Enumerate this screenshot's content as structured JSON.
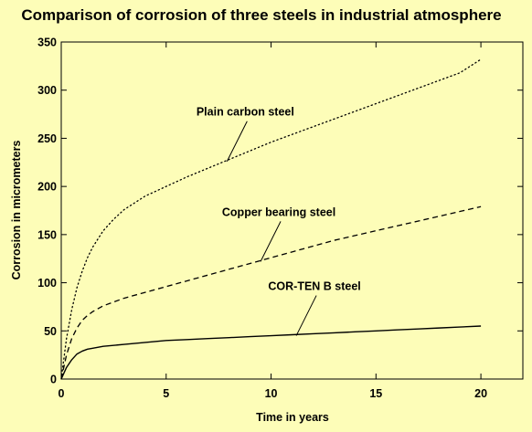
{
  "chart_data": {
    "type": "line",
    "title": "Comparison of corrosion of three steels in industrial atmosphere",
    "xlabel": "Time in years",
    "ylabel": "Corrosion in micrometers",
    "xlim": [
      0,
      22
    ],
    "ylim": [
      0,
      350
    ],
    "xticks": [
      0,
      5,
      10,
      15,
      20
    ],
    "yticks": [
      0,
      50,
      100,
      150,
      200,
      250,
      300,
      350
    ],
    "grid": false,
    "legend": "none",
    "background": "#fdfdb8",
    "series": [
      {
        "name": "Plain carbon steel",
        "style": "dotted",
        "x": [
          0,
          0.25,
          0.5,
          0.75,
          1,
          1.25,
          1.5,
          2,
          2.5,
          3,
          4,
          5,
          6,
          7,
          8,
          9,
          10,
          11,
          12,
          13,
          14,
          15,
          16,
          17,
          18,
          19,
          20
        ],
        "y": [
          0,
          42,
          72,
          95,
          112,
          126,
          137,
          154,
          166,
          176,
          190,
          200,
          210,
          219,
          228,
          237,
          246,
          254,
          262,
          270,
          278,
          286,
          294,
          302,
          310,
          318,
          332
        ]
      },
      {
        "name": "Copper bearing steel",
        "style": "dashed",
        "x": [
          0,
          0.25,
          0.5,
          0.75,
          1,
          1.25,
          1.5,
          2,
          2.5,
          3,
          4,
          5,
          6,
          7,
          8,
          9,
          10,
          11,
          12,
          13,
          14,
          15,
          16,
          17,
          18,
          19,
          20
        ],
        "y": [
          0,
          25,
          42,
          53,
          61,
          66,
          70,
          76,
          80,
          84,
          90,
          96,
          102,
          108,
          114,
          120,
          126,
          132,
          138,
          144,
          149,
          154,
          159,
          164,
          169,
          174,
          179
        ]
      },
      {
        "name": "COR-TEN B steel",
        "style": "solid",
        "x": [
          0,
          0.25,
          0.5,
          0.75,
          1,
          1.25,
          1.5,
          2,
          3,
          4,
          5,
          6,
          7,
          8,
          9,
          10,
          11,
          12,
          13,
          14,
          15,
          16,
          17,
          18,
          19,
          20
        ],
        "y": [
          0,
          12,
          20,
          26,
          29,
          31,
          32,
          34,
          36,
          38,
          40,
          41,
          42,
          43,
          44,
          45,
          46,
          47,
          48,
          49,
          50,
          51,
          52,
          53,
          54,
          55
        ]
      }
    ],
    "annotations": [
      {
        "text": "Plain carbon steel",
        "series": 0,
        "point_x": 7.9,
        "point_y": 226
      },
      {
        "text": "Copper bearing steel",
        "series": 1,
        "point_x": 9.5,
        "point_y": 122
      },
      {
        "text": "COR-TEN B steel",
        "series": 2,
        "point_x": 11.2,
        "point_y": 45
      }
    ]
  }
}
